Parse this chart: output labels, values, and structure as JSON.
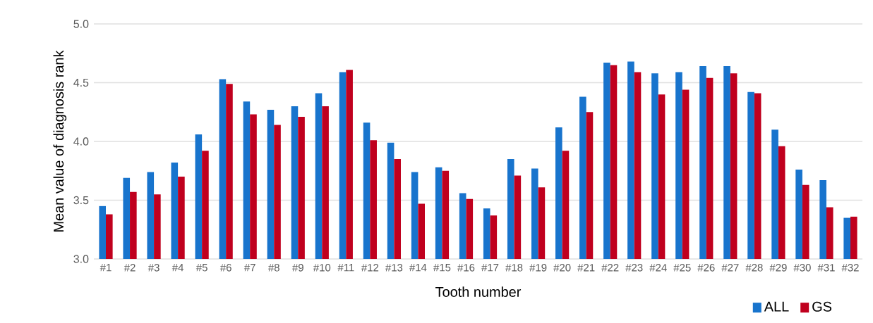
{
  "chart_data": {
    "type": "bar",
    "xlabel": "Tooth  number",
    "ylabel": "Mean value  of diagnosis rank",
    "categories": [
      "#1",
      "#2",
      "#3",
      "#4",
      "#5",
      "#6",
      "#7",
      "#8",
      "#9",
      "#10",
      "#11",
      "#12",
      "#13",
      "#14",
      "#15",
      "#16",
      "#17",
      "#18",
      "#19",
      "#20",
      "#21",
      "#22",
      "#23",
      "#24",
      "#25",
      "#26",
      "#27",
      "#28",
      "#29",
      "#30",
      "#31",
      "#32"
    ],
    "series": [
      {
        "name": "ALL",
        "color": "#1874cd",
        "values": [
          3.45,
          3.69,
          3.74,
          3.82,
          4.06,
          4.53,
          4.34,
          4.27,
          4.3,
          4.41,
          4.59,
          4.16,
          3.99,
          3.74,
          3.78,
          3.56,
          3.43,
          3.85,
          3.77,
          4.12,
          4.38,
          4.67,
          4.68,
          4.58,
          4.59,
          4.64,
          4.64,
          4.42,
          4.1,
          3.76,
          3.67,
          3.35
        ]
      },
      {
        "name": "GS",
        "color": "#c0001e",
        "values": [
          3.38,
          3.57,
          3.55,
          3.7,
          3.92,
          4.49,
          4.23,
          4.14,
          4.21,
          4.3,
          4.61,
          4.01,
          3.85,
          3.47,
          3.75,
          3.51,
          3.37,
          3.71,
          3.61,
          3.92,
          4.25,
          4.65,
          4.59,
          4.4,
          4.44,
          4.54,
          4.58,
          4.41,
          3.96,
          3.63,
          3.44,
          3.36
        ]
      }
    ],
    "ylim": [
      3.0,
      5.0
    ],
    "yticks": [
      {
        "value": 3.0,
        "label": "3.0"
      },
      {
        "value": 3.5,
        "label": "3.5"
      },
      {
        "value": 4.0,
        "label": "4.0"
      },
      {
        "value": 4.5,
        "label": "4.5"
      },
      {
        "value": 5.0,
        "label": "5.0"
      }
    ],
    "grid": "y",
    "legend": "bottom right"
  }
}
